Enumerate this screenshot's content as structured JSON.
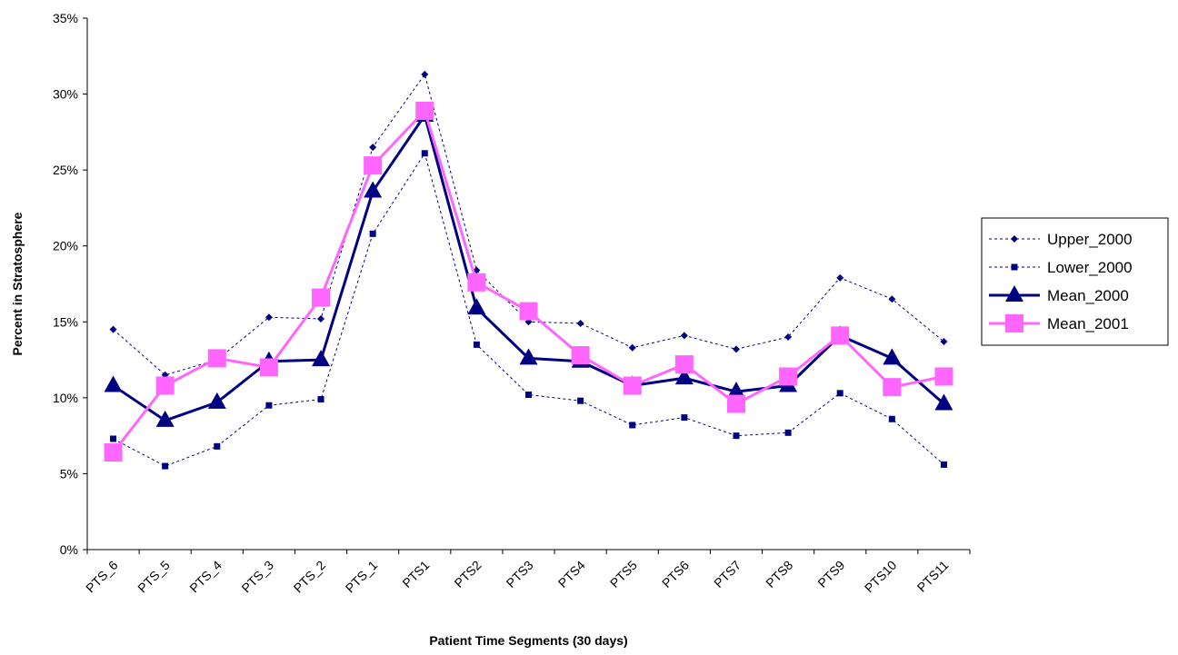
{
  "chart_data": {
    "type": "line",
    "title": "",
    "xlabel": "Patient Time Segments (30 days)",
    "ylabel": "Percent in Stratosphere",
    "ylim": [
      0,
      35
    ],
    "yticks": [
      "0%",
      "5%",
      "10%",
      "15%",
      "20%",
      "25%",
      "30%",
      "35%"
    ],
    "grid": false,
    "legend_position": "right",
    "categories": [
      "PTS_6",
      "PTS_5",
      "PTS_4",
      "PTS_3",
      "PTS_2",
      "PTS_1",
      "PTS1",
      "PTS2",
      "PTS3",
      "PTS4",
      "PTS5",
      "PTS6",
      "PTS7",
      "PTS8",
      "PTS9",
      "PTS10",
      "PTS11"
    ],
    "series": [
      {
        "name": "Upper_2000",
        "color": "#000080",
        "style": "dashed",
        "marker": "diamond",
        "values": [
          14.5,
          11.5,
          12.5,
          15.3,
          15.2,
          26.5,
          31.3,
          18.4,
          15.0,
          14.9,
          13.3,
          14.1,
          13.2,
          14.0,
          17.9,
          16.5,
          13.7
        ]
      },
      {
        "name": "Lower_2000",
        "color": "#000080",
        "style": "dashed",
        "marker": "square-small",
        "values": [
          7.3,
          5.5,
          6.8,
          9.5,
          9.9,
          20.8,
          26.1,
          13.5,
          10.2,
          9.8,
          8.2,
          8.7,
          7.5,
          7.7,
          10.3,
          8.6,
          5.6
        ]
      },
      {
        "name": "Mean_2000",
        "color": "#000080",
        "style": "solid",
        "marker": "triangle",
        "values": [
          10.8,
          8.5,
          9.7,
          12.4,
          12.5,
          23.6,
          28.6,
          15.9,
          12.6,
          12.4,
          10.8,
          11.3,
          10.4,
          10.8,
          14.1,
          12.6,
          9.6
        ]
      },
      {
        "name": "Mean_2001",
        "color": "#FF66FF",
        "style": "solid",
        "marker": "square",
        "values": [
          6.4,
          10.8,
          12.6,
          12.0,
          16.6,
          25.3,
          28.9,
          17.6,
          15.7,
          12.8,
          10.8,
          12.2,
          9.6,
          11.4,
          14.1,
          10.7,
          11.4
        ]
      }
    ]
  }
}
